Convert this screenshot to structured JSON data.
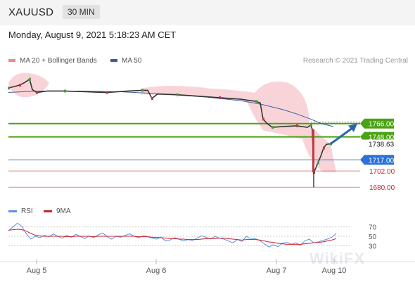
{
  "header": {
    "symbol": "XAUUSD",
    "timeframe": "30 MIN",
    "datetime": "Monday, August 9, 2021 5:18:23 AM CET"
  },
  "legend": {
    "ma20_bb": "MA 20 + Bollinger Bands",
    "ma50": "MA 50",
    "credit": "Research © 2021 Trading Central"
  },
  "rsi_legend": {
    "rsi": "RSI",
    "ma9": "9MA"
  },
  "watermark": "WikiFX",
  "colors": {
    "up_line": "#4aa312",
    "support_line": "#3a7bd5",
    "red_line": "#e5878a",
    "ma50": "#3c5e9e",
    "bollinger": "#f6c9cf",
    "arrow": "#2c64ad",
    "rsi": "#5f8fe0",
    "rsi_ma": "#c8232c"
  },
  "chart_data": [
    {
      "type": "line",
      "name": "price",
      "x_labels": [
        "Aug 5",
        "Aug 6",
        "Aug 7",
        "Aug 10"
      ],
      "ylim": [
        1665,
        1838
      ],
      "current_price": "1738.63",
      "levels": [
        {
          "value": 1766.0,
          "label": "1766.00",
          "style": "green"
        },
        {
          "value": 1748.0,
          "label": "1748.00",
          "style": "green"
        },
        {
          "value": 1717.0,
          "label": "1717.00",
          "style": "blue"
        },
        {
          "value": 1702.0,
          "label": "1702.00",
          "style": "red"
        },
        {
          "value": 1680.0,
          "label": "1680.00",
          "style": "red"
        }
      ],
      "price_series": [
        [
          0,
          1814
        ],
        [
          8,
          1816
        ],
        [
          16,
          1818
        ],
        [
          24,
          1822
        ],
        [
          30,
          1826
        ],
        [
          34,
          1812
        ],
        [
          40,
          1808
        ],
        [
          55,
          1810
        ],
        [
          80,
          1810
        ],
        [
          110,
          1809
        ],
        [
          140,
          1808
        ],
        [
          170,
          1810
        ],
        [
          190,
          1811
        ],
        [
          198,
          1811
        ],
        [
          204,
          1800
        ],
        [
          212,
          1806
        ],
        [
          240,
          1805
        ],
        [
          270,
          1803
        ],
        [
          300,
          1801
        ],
        [
          330,
          1799
        ],
        [
          352,
          1796
        ],
        [
          358,
          1794
        ],
        [
          362,
          1772
        ],
        [
          368,
          1766
        ],
        [
          375,
          1761
        ],
        [
          390,
          1762
        ],
        [
          410,
          1763
        ],
        [
          425,
          1761
        ],
        [
          430,
          1764
        ],
        [
          432,
          1758
        ],
        [
          434,
          1700
        ],
        [
          437,
          1706
        ],
        [
          440,
          1713
        ],
        [
          444,
          1722
        ],
        [
          448,
          1733
        ],
        [
          452,
          1738
        ],
        [
          458,
          1738.63
        ]
      ],
      "ma50": [
        [
          0,
          1808
        ],
        [
          40,
          1810
        ],
        [
          100,
          1810
        ],
        [
          160,
          1809
        ],
        [
          220,
          1806
        ],
        [
          280,
          1802
        ],
        [
          330,
          1797
        ],
        [
          360,
          1792
        ],
        [
          390,
          1785
        ],
        [
          410,
          1779
        ],
        [
          430,
          1772
        ],
        [
          445,
          1766
        ],
        [
          462,
          1762
        ]
      ],
      "projection": {
        "from": 1738.63,
        "to": 1766.0
      }
    },
    {
      "type": "line",
      "name": "RSI",
      "ylim": [
        14,
        86
      ],
      "ticks": [
        30,
        50,
        70
      ],
      "series": [
        {
          "name": "RSI",
          "values": [
            62,
            70,
            78,
            71,
            55,
            44,
            50,
            47,
            52,
            49,
            55,
            50,
            46,
            52,
            48,
            54,
            50,
            45,
            51,
            47,
            53,
            57,
            49,
            44,
            50,
            48,
            52,
            55,
            50,
            47,
            51,
            49,
            46,
            44,
            48,
            40,
            42,
            47,
            44,
            40,
            43,
            41,
            46,
            51,
            48,
            44,
            50,
            46,
            44,
            40,
            36,
            43,
            39,
            50,
            44,
            45,
            41,
            34,
            27,
            32,
            28,
            35,
            37,
            33,
            36,
            31,
            40,
            44,
            36,
            38,
            41,
            44,
            48,
            56
          ]
        },
        {
          "name": "9MA",
          "values": [
            63,
            64,
            65,
            64,
            61,
            56,
            52,
            51,
            50,
            50,
            50,
            50,
            50,
            49,
            49,
            50,
            50,
            50,
            50,
            49,
            50,
            50,
            50,
            50,
            50,
            50,
            50,
            50,
            50,
            49,
            49,
            49,
            48,
            48,
            47,
            46,
            45,
            45,
            44,
            44,
            43,
            43,
            43,
            44,
            45,
            45,
            45,
            46,
            46,
            45,
            44,
            43,
            42,
            43,
            43,
            43,
            42,
            40,
            38,
            37,
            35,
            34,
            33,
            33,
            33,
            33,
            34,
            35,
            36,
            37,
            38,
            40,
            42,
            45
          ]
        }
      ]
    }
  ]
}
